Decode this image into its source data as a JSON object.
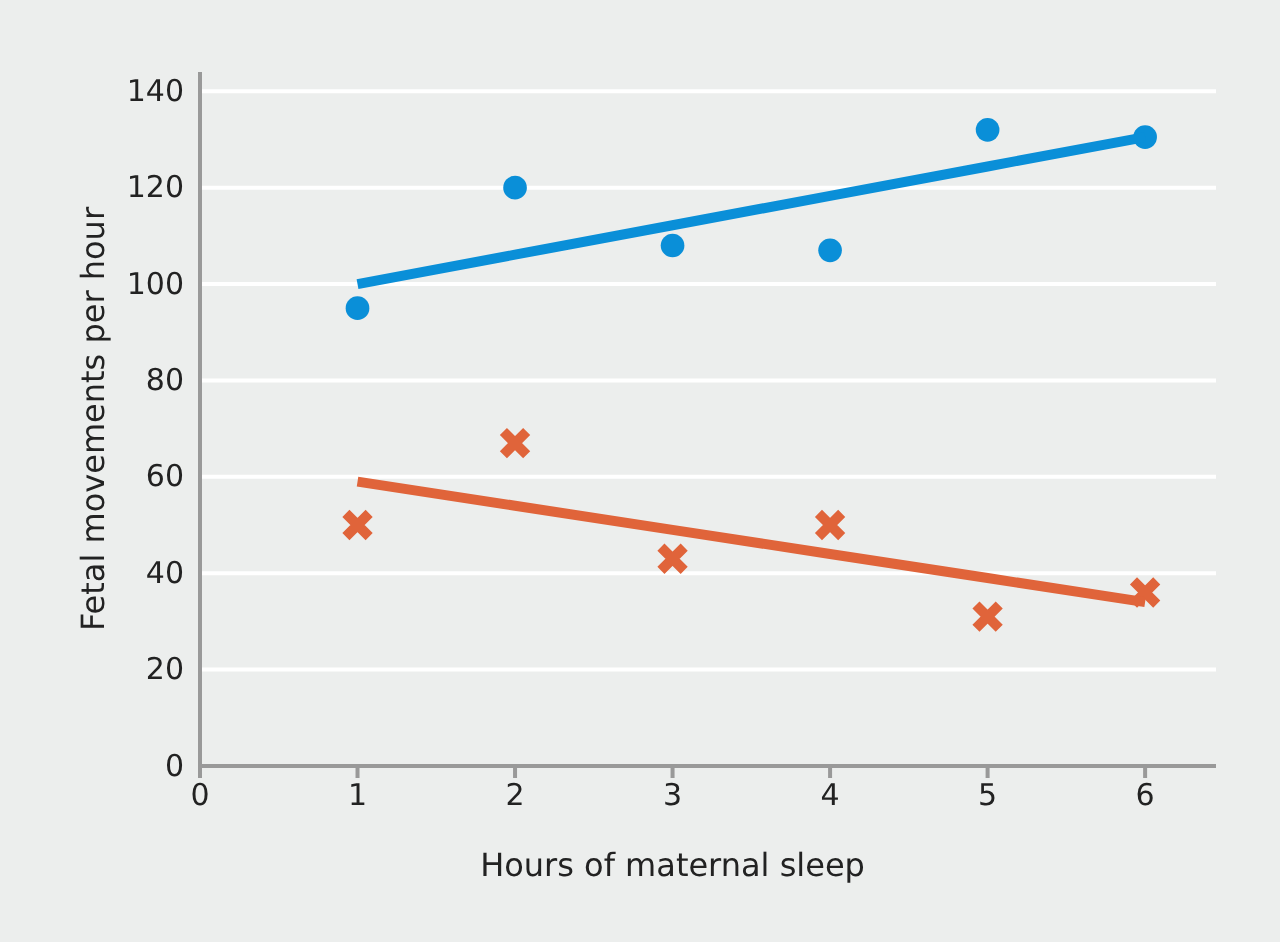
{
  "chart_data": {
    "type": "scatter",
    "xlabel": "Hours of maternal sleep",
    "ylabel": "Fetal movements per hour",
    "x": [
      1,
      2,
      3,
      4,
      5,
      6
    ],
    "series": [
      {
        "marker": "circle",
        "color": "#0a8fd8",
        "values": [
          95,
          120,
          108,
          107,
          132,
          130.5
        ]
      },
      {
        "marker": "cross",
        "color": "#e0643a",
        "values": [
          50,
          67,
          43,
          50,
          31,
          36
        ]
      },
      {
        "type": "line",
        "marker": "none",
        "color": "#0a8fd8",
        "values": [
          100,
          106.1,
          112.2,
          118.3,
          124.4,
          130.5
        ]
      },
      {
        "type": "line",
        "marker": "none",
        "color": "#e0643a",
        "values": [
          59,
          54,
          49,
          44,
          39,
          34
        ]
      }
    ],
    "xlim": [
      0,
      6.45
    ],
    "xticks": [
      0,
      1,
      2,
      3,
      4,
      5,
      6
    ],
    "ylim": [
      0,
      144
    ],
    "yticks": [
      0,
      20,
      40,
      60,
      80,
      100,
      120,
      140
    ],
    "grid": "y"
  }
}
